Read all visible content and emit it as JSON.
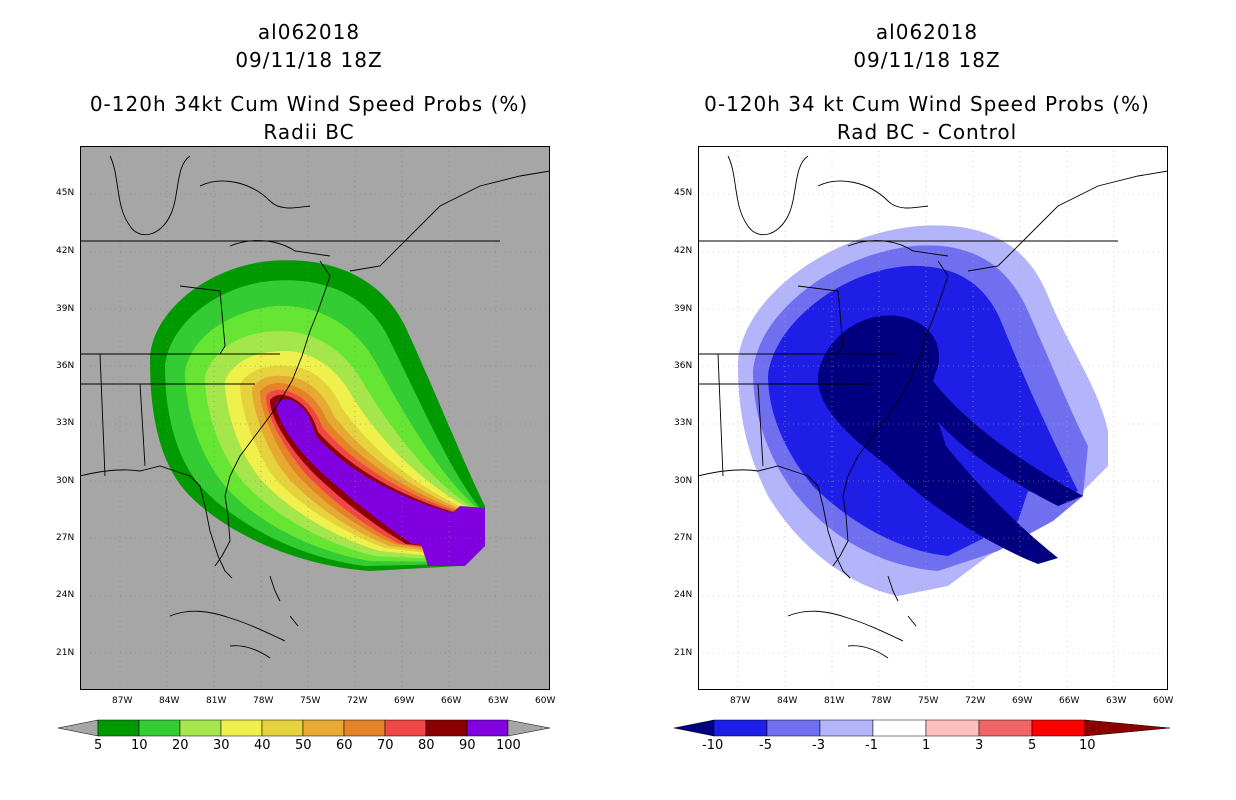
{
  "left": {
    "storm_id": "al062018",
    "datetime": "09/11/18 18Z",
    "title_line1": "0-120h 34kt Cum Wind Speed Probs (%)",
    "title_line2": "Radii BC",
    "colorbar_labels": [
      "5",
      "10",
      "20",
      "30",
      "40",
      "50",
      "60",
      "70",
      "80",
      "90",
      "100"
    ],
    "colors": [
      "#009a00",
      "#33cc33",
      "#66e633",
      "#a6e64d",
      "#f0f04d",
      "#e6d23c",
      "#e6aa32",
      "#e68228",
      "#f04646",
      "#8c0000",
      "#8000e0"
    ]
  },
  "right": {
    "storm_id": "al062018",
    "datetime": "09/11/18 18Z",
    "title_line1": "0-120h 34 kt Cum Wind Speed Probs (%)",
    "title_line2": "Rad BC - Control",
    "colorbar_labels": [
      "-10",
      "-5",
      "-3",
      "-1",
      "1",
      "3",
      "5",
      "10"
    ],
    "colors": [
      "#000080",
      "#1e1ee6",
      "#6f6ff0",
      "#b4b4fa",
      "#ffffff",
      "#ffc0c0",
      "#f06464",
      "#ff0000",
      "#8c0000"
    ]
  },
  "axes": {
    "lat_labels": [
      "45N",
      "42N",
      "39N",
      "36N",
      "33N",
      "30N",
      "27N",
      "24N",
      "21N"
    ],
    "lon_labels": [
      "87W",
      "84W",
      "81W",
      "78W",
      "75W",
      "72W",
      "69W",
      "66W",
      "63W",
      "60W"
    ]
  }
}
